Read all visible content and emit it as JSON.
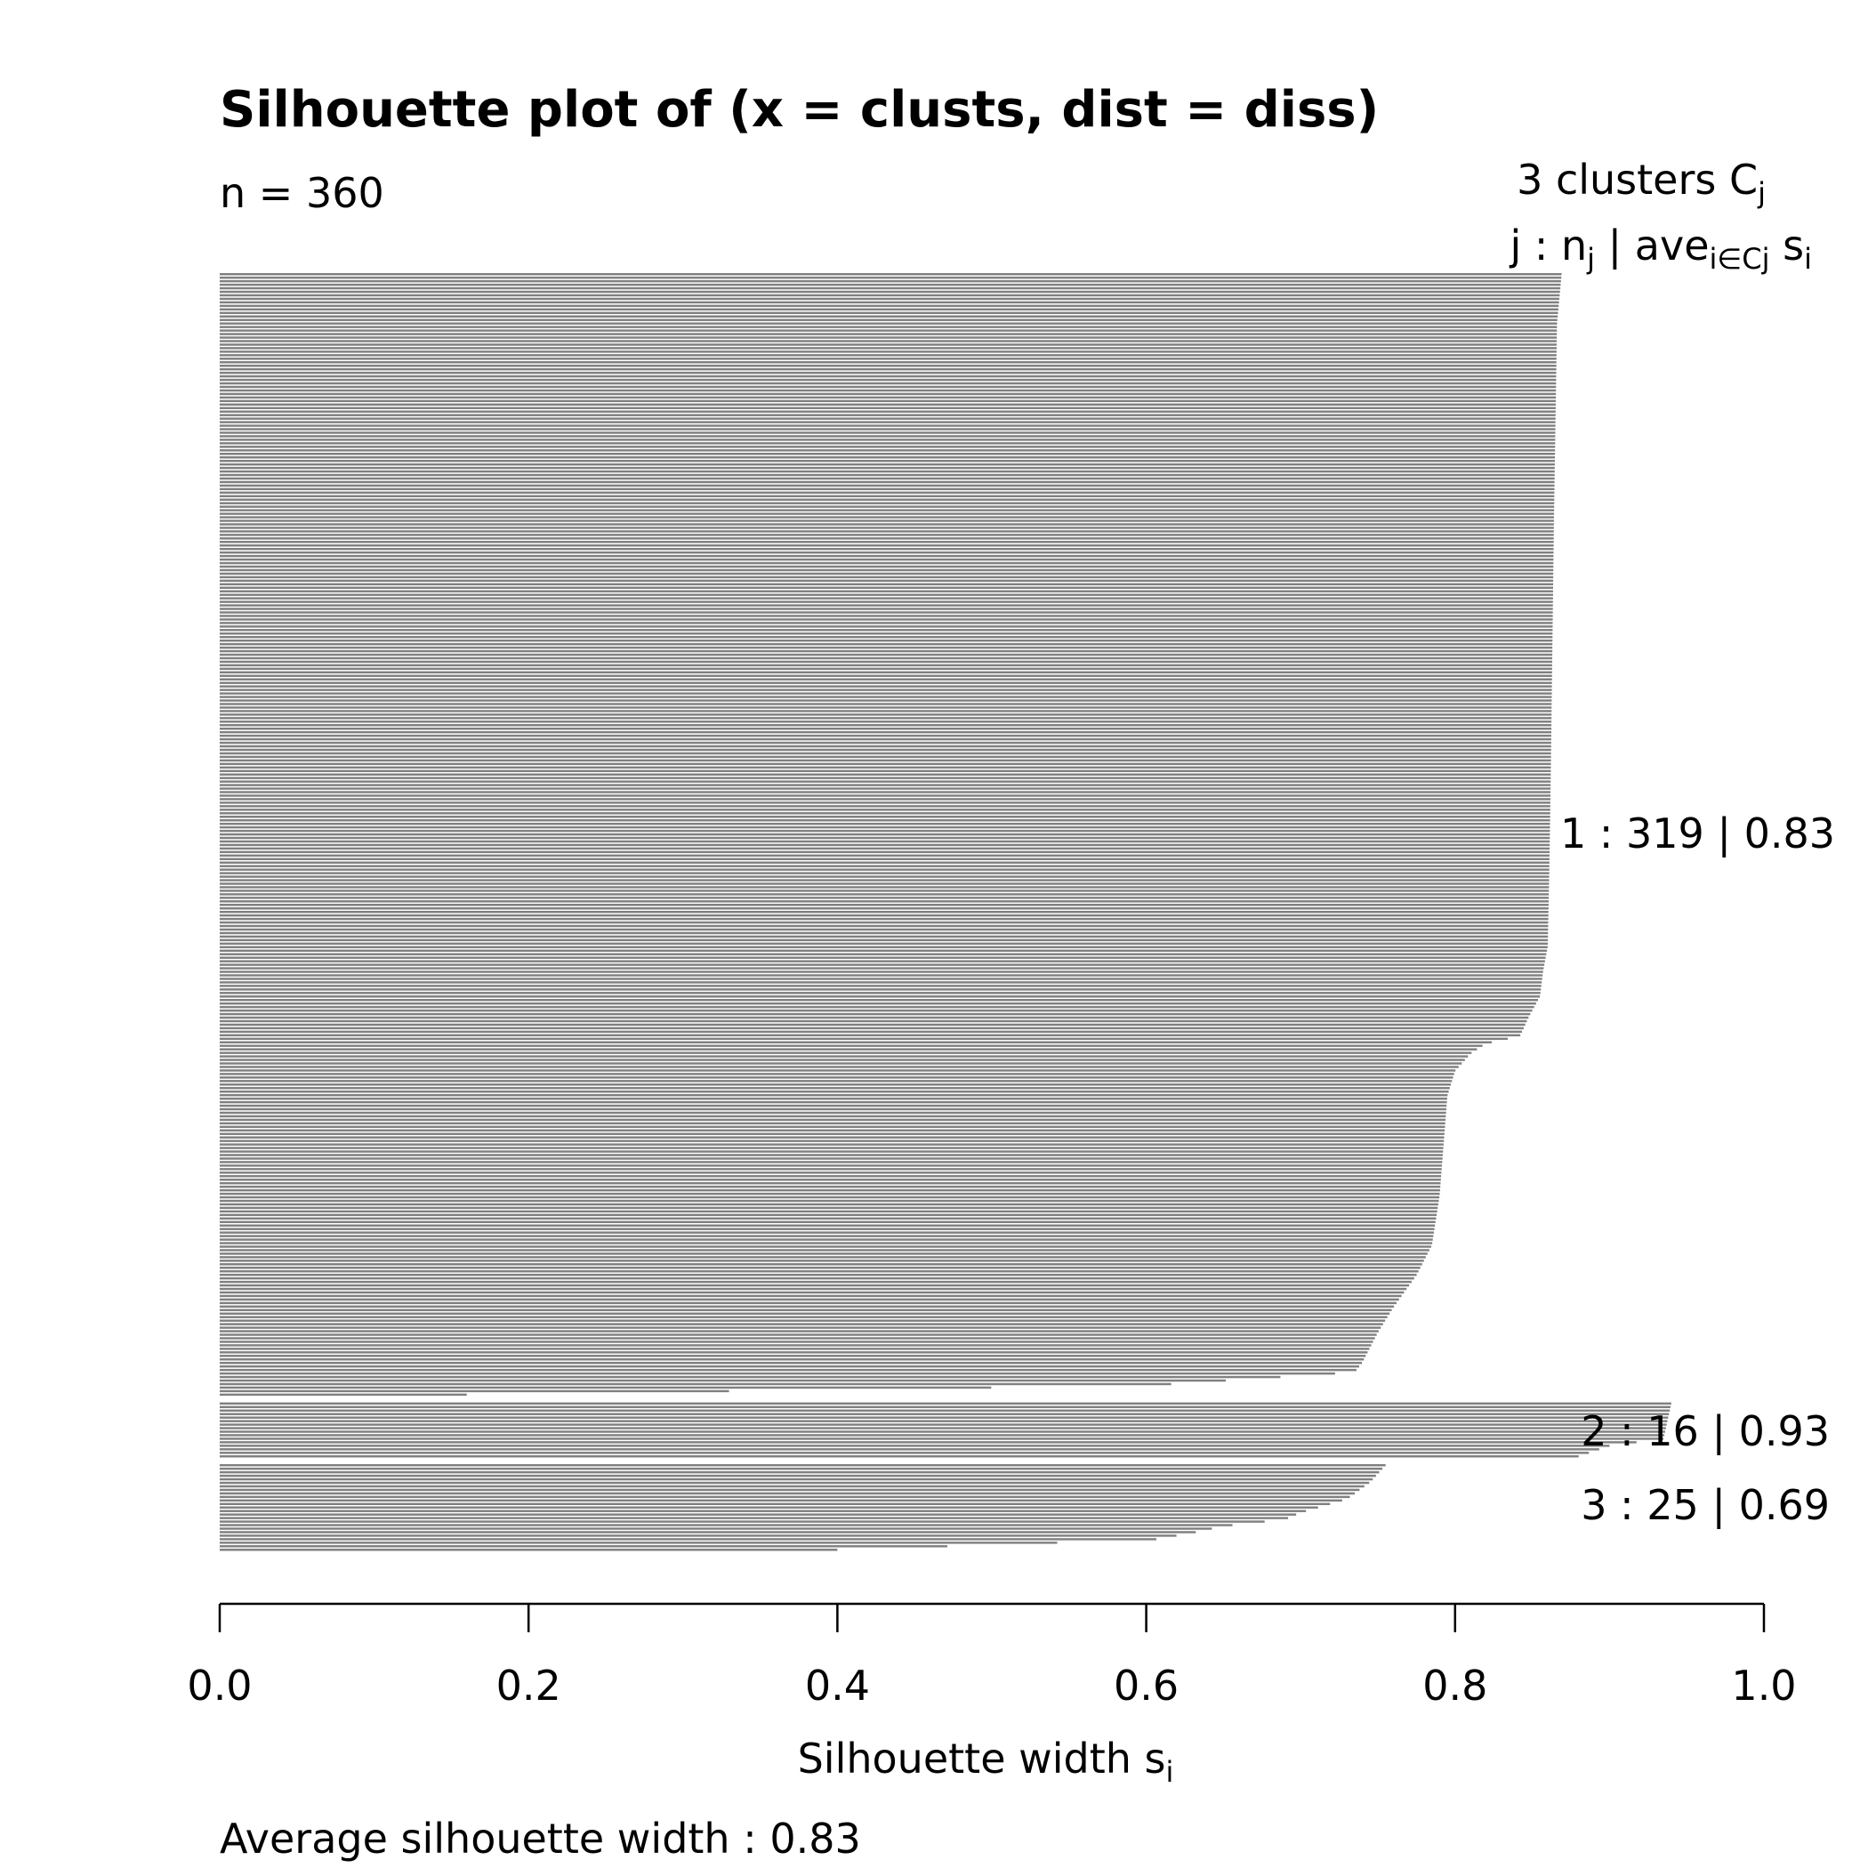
{
  "chart_data": {
    "type": "bar",
    "orientation": "horizontal",
    "title": "Silhouette plot of (x = clusts, dist = diss)",
    "subtitle": "n = 360",
    "legend_header": {
      "line1_prefix": "3  clusters  C",
      "line1_sub": "j",
      "line2_a": "j :  n",
      "line2_a_sub": "j",
      "line2_b": " | ave",
      "line2_b_sub": "i∈Cj",
      "line2_c": "  s",
      "line2_c_sub": "i"
    },
    "xlabel": "Silhouette width s",
    "xlabel_sub": "i",
    "xlim": [
      0,
      1
    ],
    "xticks": [
      "0.0",
      "0.2",
      "0.4",
      "0.6",
      "0.8",
      "1.0"
    ],
    "footer": "Average silhouette width :  0.83",
    "bar_color": "#808080",
    "clusters": [
      {
        "label": "1 :   319  |  0.83",
        "n": 319,
        "average": 0.83,
        "profile": [
          [
            0,
            0.869
          ],
          [
            20,
            0.866
          ],
          [
            60,
            0.865
          ],
          [
            100,
            0.864
          ],
          [
            150,
            0.863
          ],
          [
            200,
            0.862
          ],
          [
            240,
            0.861
          ],
          [
            270,
            0.86
          ],
          [
            280,
            0.857
          ],
          [
            290,
            0.855
          ],
          [
            298,
            0.848
          ],
          [
            306,
            0.842
          ],
          [
            309,
            0.82
          ],
          [
            313,
            0.81
          ],
          [
            320,
            0.8
          ],
          [
            330,
            0.795
          ],
          [
            370,
            0.79
          ],
          [
            390,
            0.785
          ],
          [
            402,
            0.775
          ],
          [
            415,
            0.76
          ],
          [
            425,
            0.75
          ],
          [
            437,
            0.74
          ],
          [
            441,
            0.735
          ],
          [
            446,
            0.61
          ],
          [
            447,
            0.52
          ],
          [
            450,
            0.16
          ]
        ]
      },
      {
        "label": "2 :   16  |  0.93",
        "n": 16,
        "average": 0.93,
        "profile": [
          [
            0,
            0.94
          ],
          [
            10,
            0.935
          ],
          [
            12,
            0.9
          ],
          [
            15,
            0.88
          ]
        ]
      },
      {
        "label": "3 :   25  |  0.69",
        "n": 25,
        "average": 0.69,
        "profile": [
          [
            0,
            0.755
          ],
          [
            5,
            0.745
          ],
          [
            10,
            0.73
          ],
          [
            12,
            0.715
          ],
          [
            14,
            0.7
          ],
          [
            16,
            0.69
          ],
          [
            18,
            0.65
          ],
          [
            20,
            0.63
          ],
          [
            22,
            0.605
          ],
          [
            25,
            0.4
          ]
        ]
      }
    ]
  }
}
